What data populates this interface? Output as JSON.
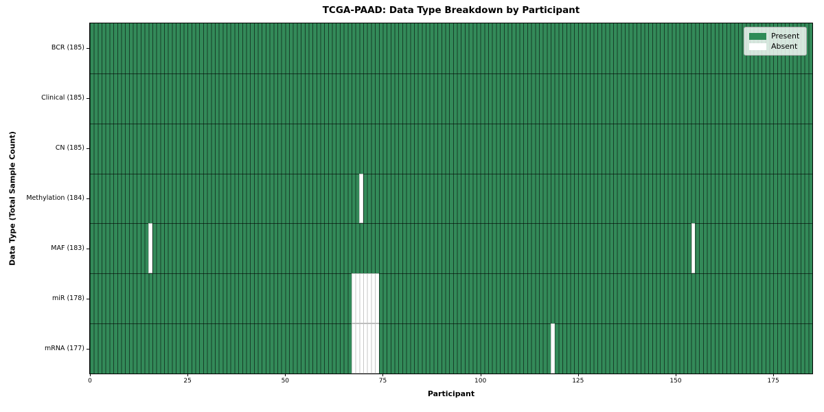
{
  "title": "TCGA-PAAD: Data Type Breakdown by Participant",
  "xlabel": "Participant",
  "ylabel": "Data Type (Total Sample Count)",
  "legend": {
    "entries": [
      {
        "label": "Present",
        "color": "#2e8b57"
      },
      {
        "label": "Absent",
        "color": "#ffffff"
      }
    ]
  },
  "chart_data": {
    "type": "heatmap",
    "title": "TCGA-PAAD: Data Type Breakdown by Participant",
    "xlabel": "Participant",
    "ylabel": "Data Type (Total Sample Count)",
    "x_range": [
      0,
      185
    ],
    "n_participants": 185,
    "x_ticks": [
      0,
      25,
      50,
      75,
      100,
      125,
      150,
      175
    ],
    "legend_position": "upper right",
    "grid": false,
    "colors": {
      "present": "#2e8b57",
      "absent": "#ffffff"
    },
    "rows": [
      {
        "label": "BCR (185)",
        "data_type": "BCR",
        "total": 185,
        "absent_participants": []
      },
      {
        "label": "Clinical (185)",
        "data_type": "Clinical",
        "total": 185,
        "absent_participants": []
      },
      {
        "label": "CN (185)",
        "data_type": "CN",
        "total": 185,
        "absent_participants": []
      },
      {
        "label": "Methylation (184)",
        "data_type": "Methylation",
        "total": 184,
        "absent_participants": [
          69
        ]
      },
      {
        "label": "MAF (183)",
        "data_type": "MAF",
        "total": 183,
        "absent_participants": [
          15,
          154
        ]
      },
      {
        "label": "miR (178)",
        "data_type": "miR",
        "total": 178,
        "absent_participants": [
          67,
          68,
          69,
          70,
          71,
          72,
          73
        ]
      },
      {
        "label": "mRNA (177)",
        "data_type": "mRNA",
        "total": 177,
        "absent_participants": [
          67,
          68,
          69,
          70,
          71,
          72,
          73,
          118
        ]
      }
    ]
  }
}
